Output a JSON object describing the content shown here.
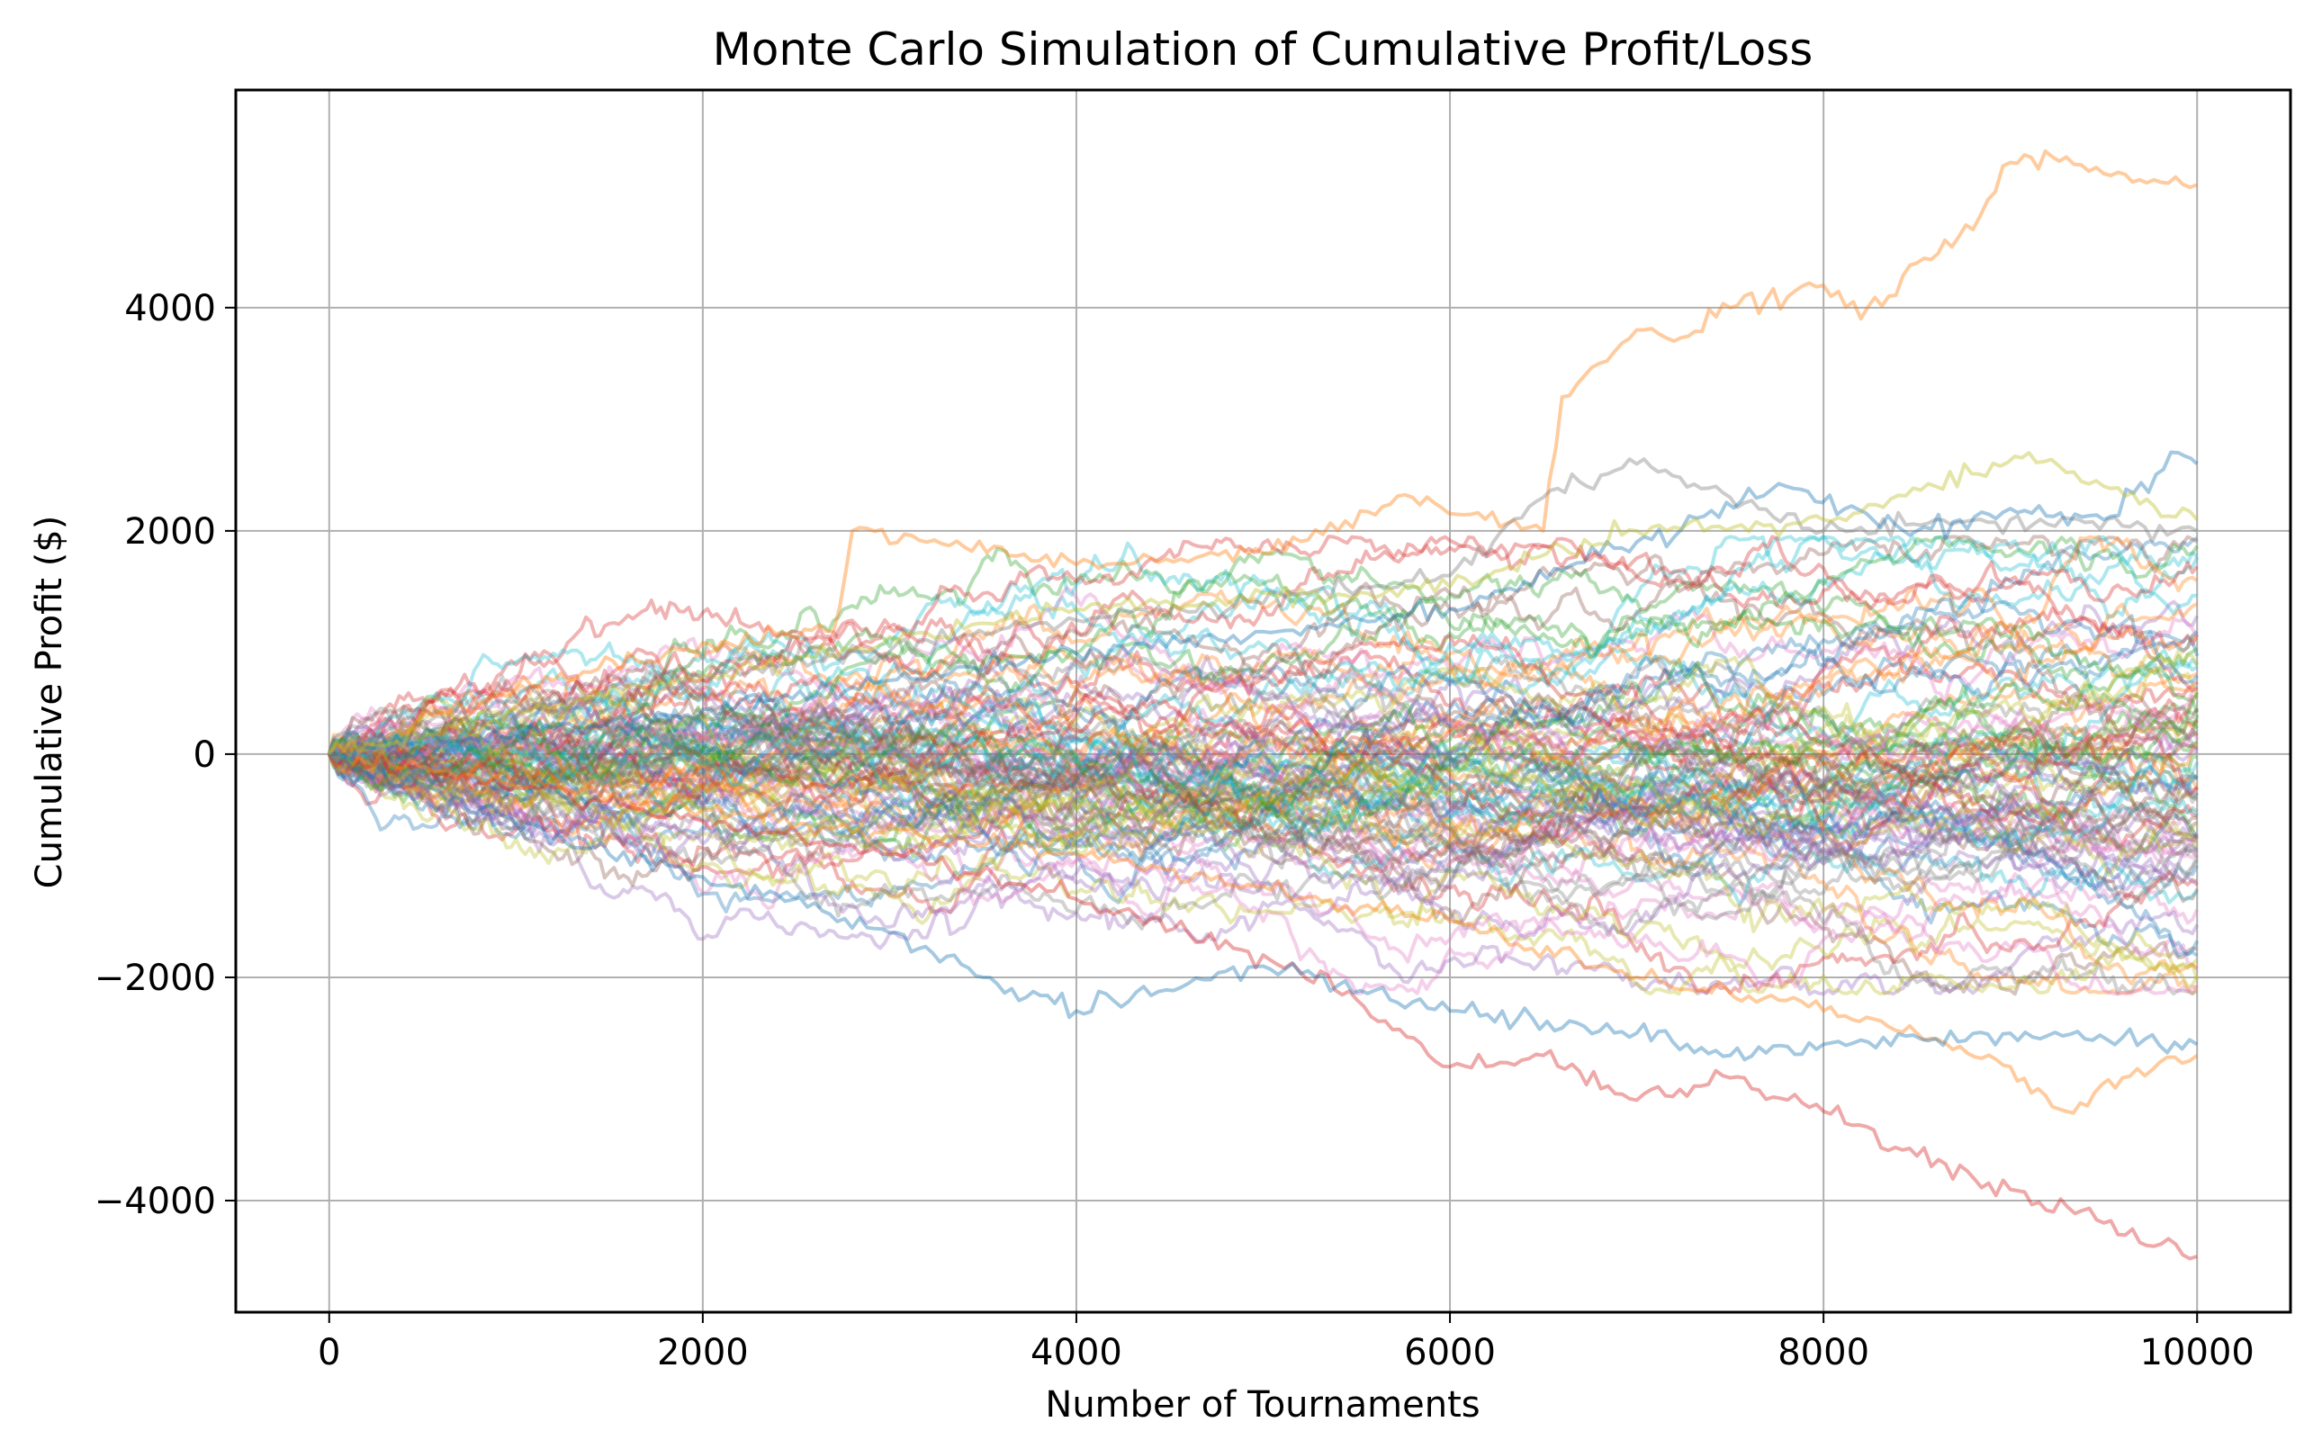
{
  "chart_data": {
    "type": "line",
    "title": "Monte Carlo Simulation of Cumulative Profit/Loss",
    "xlabel": "Number of Tournaments",
    "ylabel": "Cumulative Profit ($)",
    "xlim": [
      -500,
      10500
    ],
    "ylim": [
      -5000,
      5950
    ],
    "x_ticks": [
      0,
      2000,
      4000,
      6000,
      8000,
      10000
    ],
    "x_tick_labels": [
      "0",
      "2000",
      "4000",
      "6000",
      "8000",
      "10000"
    ],
    "y_ticks": [
      -4000,
      -2000,
      0,
      2000,
      4000
    ],
    "y_tick_labels": [
      "−4000",
      "−2000",
      "0",
      "2000",
      "4000"
    ],
    "grid": true,
    "legend": "none",
    "series_count": 100,
    "series_opacity": 0.35,
    "simulation": {
      "n_tournaments": 10000,
      "spread_sd_at_end": 1100,
      "final_mean": -150
    },
    "palette": [
      "#1f77b4",
      "#ff7f0e",
      "#2ca02c",
      "#d62728",
      "#9467bd",
      "#8c564b",
      "#e377c2",
      "#7f7f7f",
      "#bcbd22",
      "#17becf"
    ],
    "highlight_series": [
      {
        "color": "#ff7f0e",
        "x": [
          0,
          1000,
          2000,
          2700,
          2800,
          3200,
          4000,
          5000,
          5800,
          6500,
          6600,
          6800,
          7000,
          7200,
          7500,
          8000,
          8200,
          8500,
          8800,
          9000,
          9300,
          9500,
          10000
        ],
        "y": [
          0,
          600,
          1000,
          1100,
          2000,
          1900,
          1700,
          1800,
          2300,
          2000,
          3200,
          3500,
          3800,
          3700,
          4000,
          4200,
          3900,
          4400,
          4700,
          5300,
          5350,
          5200,
          5100
        ]
      },
      {
        "color": "#d62728",
        "x": [
          0,
          1000,
          2000,
          3000,
          4000,
          5000,
          5500,
          6000,
          6500,
          7000,
          7500,
          8000,
          8500,
          9000,
          9500,
          10000
        ],
        "y": [
          0,
          -300,
          -600,
          -900,
          -1300,
          -1800,
          -2200,
          -2800,
          -2700,
          -3100,
          -2900,
          -3200,
          -3600,
          -3900,
          -4200,
          -4500
        ]
      },
      {
        "color": "#ff7f0e",
        "x": [
          0,
          2000,
          4000,
          6000,
          7000,
          8000,
          8500,
          9000,
          9300,
          9600,
          10000
        ],
        "y": [
          0,
          -500,
          -900,
          -1500,
          -2000,
          -2300,
          -2500,
          -2800,
          -3200,
          -2900,
          -2700
        ]
      },
      {
        "color": "#1f77b4",
        "x": [
          0,
          1500,
          2000,
          3000,
          3500,
          4000,
          5000,
          6000,
          7000,
          7500,
          8000,
          9000,
          10000
        ],
        "y": [
          0,
          -900,
          -1100,
          -1600,
          -2000,
          -2300,
          -1900,
          -2300,
          -2500,
          -2700,
          -2600,
          -2500,
          -2600
        ]
      },
      {
        "color": "#7f7f7f",
        "x": [
          0,
          2000,
          4000,
          6000,
          6500,
          7000,
          7500,
          8000,
          9000,
          10000
        ],
        "y": [
          0,
          700,
          1200,
          1600,
          2300,
          2600,
          2300,
          2000,
          2100,
          2000
        ]
      },
      {
        "color": "#1f77b4",
        "x": [
          0,
          2000,
          4000,
          6000,
          7000,
          7800,
          8500,
          9000,
          9500,
          9900,
          10000
        ],
        "y": [
          0,
          400,
          900,
          1300,
          1900,
          2400,
          2000,
          2200,
          2100,
          2700,
          2600
        ]
      },
      {
        "color": "#bcbd22",
        "x": [
          0,
          2000,
          4000,
          6000,
          7000,
          8000,
          8600,
          9100,
          9500,
          10000
        ],
        "y": [
          0,
          700,
          1300,
          1500,
          2000,
          2100,
          2400,
          2700,
          2400,
          2100
        ]
      }
    ]
  }
}
